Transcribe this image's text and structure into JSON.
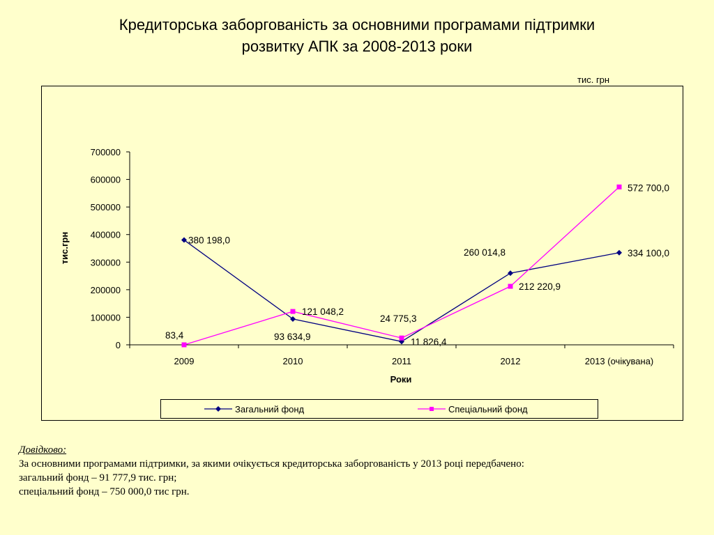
{
  "slide": {
    "title_line1": "Кредиторська заборгованість за основними програмами підтримки",
    "title_line2": "розвитку АПК за 2008-2013 роки",
    "units": "тис. грн"
  },
  "chart_data": {
    "type": "line",
    "title": "",
    "xlabel": "Роки",
    "ylabel": "тис.грн",
    "ylim": [
      0,
      700000
    ],
    "yticks": [
      "700000",
      "600000",
      "500000",
      "400000",
      "300000",
      "200000",
      "100000",
      "0"
    ],
    "categories": [
      "2009",
      "2010",
      "2011",
      "2012",
      "2013 (очікувана)"
    ],
    "grid": false,
    "legend_position": "bottom",
    "series": [
      {
        "name": "Загальний фонд",
        "color": "#000080",
        "marker": "diamond",
        "values": [
          380198.0,
          93634.9,
          11826.4,
          260014.8,
          334100.0
        ],
        "labels": [
          "380 198,0",
          "93 634,9",
          "11 826,4",
          "260 014,8",
          "334 100,0"
        ]
      },
      {
        "name": "Спеціальний фонд",
        "color": "#ff00ff",
        "marker": "square",
        "values": [
          83.4,
          121048.2,
          24775.3,
          212220.9,
          572700.0
        ],
        "labels": [
          "83,4",
          "121 048,2",
          "24 775,3",
          "212 220,9",
          "572 700,0"
        ]
      }
    ]
  },
  "note": {
    "heading": "Довідково:",
    "line1": "За основними програмами підтримки, за якими очікується кредиторська заборгованість у 2013 році передбачено:",
    "line2": "загальний фонд – 91 777,9 тис. грн;",
    "line3": "спеціальний фонд – 750 000,0 тис грн."
  }
}
